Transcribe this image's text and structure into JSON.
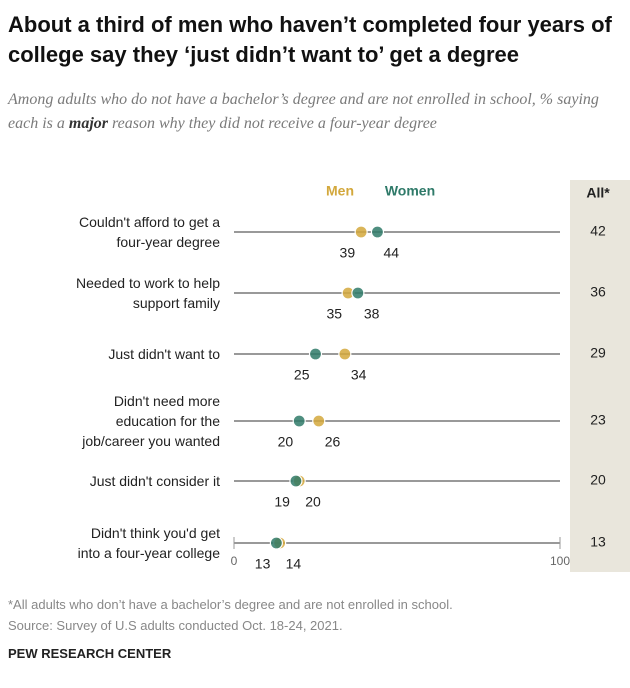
{
  "chart_data": {
    "type": "dot",
    "title": "About a third of men who haven’t completed four years of college say they ‘just didn’t want to’ get a degree",
    "subtitle_start": "Among adults who do not have a bachelor’s degree and are not enrolled in school, % saying each is a",
    "subtitle_emphasis": "major",
    "subtitle_end": "reason why they did not receive a four-year degree",
    "categories": [
      "Couldn't afford to get a\nfour-year degree",
      "Needed to work to help\nsupport family",
      "Just didn't want to",
      "Didn't need more\neducation for the\njob/career you wanted",
      "Just didn't consider it",
      "Didn't think you'd get\ninto a four-year college"
    ],
    "series": [
      {
        "name": "Men",
        "color": "#d3a83c",
        "values": [
          39,
          35,
          34,
          26,
          20,
          14
        ]
      },
      {
        "name": "Women",
        "color": "#2f7a69",
        "values": [
          44,
          38,
          25,
          20,
          19,
          13
        ]
      }
    ],
    "total_header": "All*",
    "total_values": [
      42,
      36,
      29,
      23,
      20,
      13
    ],
    "xlim": [
      0,
      100
    ],
    "xticks": [
      0,
      100
    ],
    "footnote": "*All adults who don’t have a bachelor’s degree and are not enrolled in school.",
    "source": "Source: Survey of U.S adults conducted Oct. 18-24, 2021.",
    "credit": "PEW RESEARCH CENTER"
  }
}
